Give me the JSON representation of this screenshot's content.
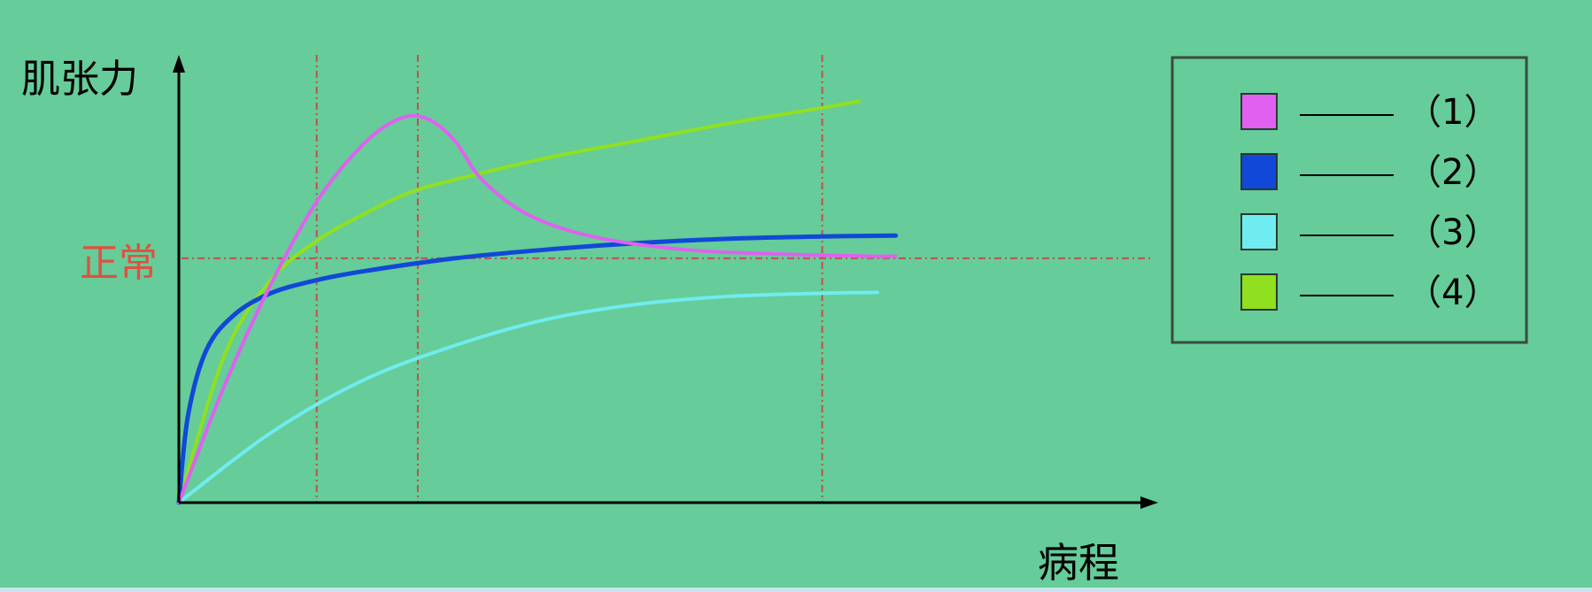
{
  "chart_data": {
    "type": "line",
    "ylabel": "肌张力",
    "xlabel": "病程",
    "reference_label": "正常",
    "xlim": [
      0,
      100
    ],
    "ylim": [
      0,
      100
    ],
    "reference_y": 56,
    "reference_lines_x": [
      15,
      26,
      70
    ],
    "series": [
      {
        "name": "（1）",
        "color": "#e060f0",
        "x": [
          0,
          5,
          10,
          15,
          20,
          24,
          27,
          30,
          33,
          38,
          45,
          55,
          65,
          75,
          78
        ],
        "y": [
          0,
          27,
          50,
          69,
          82,
          88,
          88,
          83,
          74,
          66,
          61,
          58,
          57,
          56.5,
          56.5
        ]
      },
      {
        "name": "（2）",
        "color": "#1148d8",
        "x": [
          0,
          1,
          3,
          6,
          10,
          15,
          20,
          30,
          40,
          50,
          60,
          70,
          78
        ],
        "y": [
          0,
          20,
          35,
          43,
          48,
          51,
          53,
          56,
          58,
          59.5,
          60.5,
          61,
          61.2
        ]
      },
      {
        "name": "（3）",
        "color": "#70ecf0",
        "x": [
          0,
          10,
          20,
          30,
          40,
          50,
          60,
          70,
          76
        ],
        "y": [
          0,
          16,
          28,
          36,
          42,
          45.5,
          47.3,
          48,
          48.2
        ]
      },
      {
        "name": "（4）",
        "color": "#90e020",
        "x": [
          0,
          5,
          10,
          15,
          20,
          25,
          30,
          40,
          50,
          60,
          70,
          74
        ],
        "y": [
          0,
          34,
          51,
          60,
          66,
          71,
          74,
          79,
          83,
          87,
          90.5,
          92
        ]
      }
    ],
    "legend": {
      "placement": "top-right",
      "entries": [
        {
          "label": "（1）",
          "color": "#e060f0"
        },
        {
          "label": "（2）",
          "color": "#1148d8"
        },
        {
          "label": "（3）",
          "color": "#70ecf0"
        },
        {
          "label": "（4）",
          "color": "#90e020"
        }
      ]
    },
    "grid": false
  },
  "colors": {
    "chart_background": "#66cc99",
    "axis": "#000000",
    "reference_lines": "#c0504d",
    "reference_label": "#e05040"
  }
}
